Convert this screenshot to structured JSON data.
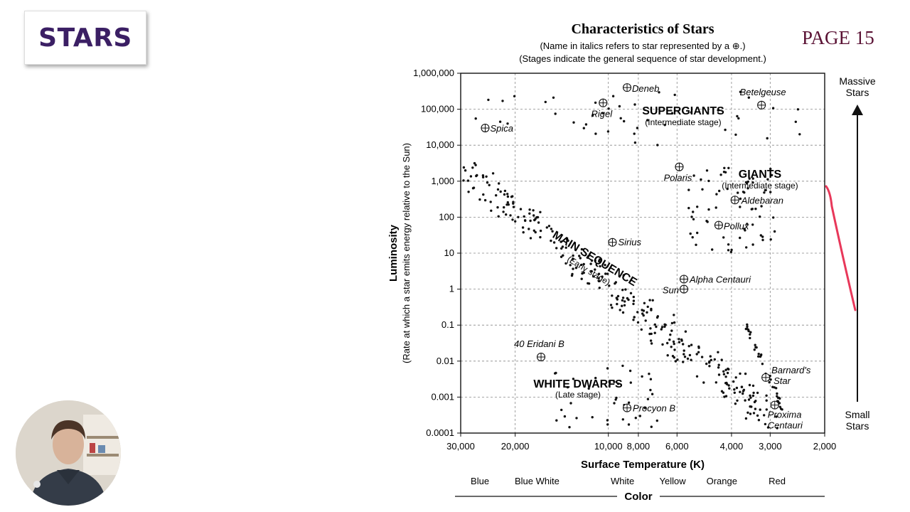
{
  "slide": {
    "heading": "STARS",
    "page_label": "PAGE 15",
    "colors": {
      "heading": "#3b1f64",
      "page_label": "#5a1234"
    }
  },
  "chart_data": {
    "type": "scatter",
    "title": "Characteristics of Stars",
    "subtitle_1": "(Name in italics refers to star represented by a ⊕.)",
    "subtitle_2": "(Stages indicate the general sequence of star development.)",
    "xlabel": "Surface Temperature (K)",
    "ylabel": "Luminosity",
    "ylabel_sub": "(Rate at which a star emits energy relative to the Sun)",
    "x_scale": "log-reversed",
    "xlim": [
      30000,
      2000
    ],
    "ylim": [
      0.0001,
      1000000
    ],
    "x_ticks": [
      {
        "v": 30000,
        "label": "30,000"
      },
      {
        "v": 20000,
        "label": "20,000"
      },
      {
        "v": 10000,
        "label": "10,000"
      },
      {
        "v": 8000,
        "label": "8,000"
      },
      {
        "v": 6000,
        "label": "6,000"
      },
      {
        "v": 4000,
        "label": "4,000"
      },
      {
        "v": 3000,
        "label": "3,000"
      },
      {
        "v": 2000,
        "label": "2,000"
      }
    ],
    "y_ticks": [
      {
        "v": 1000000,
        "label": "1,000,000"
      },
      {
        "v": 100000,
        "label": "100,000"
      },
      {
        "v": 10000,
        "label": "10,000"
      },
      {
        "v": 1000,
        "label": "1,000"
      },
      {
        "v": 100,
        "label": "100"
      },
      {
        "v": 10,
        "label": "10"
      },
      {
        "v": 1,
        "label": "1"
      },
      {
        "v": 0.1,
        "label": "0.1"
      },
      {
        "v": 0.01,
        "label": "0.01"
      },
      {
        "v": 0.001,
        "label": "0.001"
      },
      {
        "v": 0.0001,
        "label": "0.0001"
      }
    ],
    "color_bands": [
      "Blue",
      "Blue White",
      "White",
      "Yellow",
      "Orange",
      "Red"
    ],
    "color_axis_label": "Color",
    "side_top": [
      "Massive",
      "Stars"
    ],
    "side_bottom": [
      "Small",
      "Stars"
    ],
    "regions": [
      {
        "name": "SUPERGIANTS",
        "stage": "(Intermediate stage)"
      },
      {
        "name": "GIANTS",
        "stage": "(Intermediate stage)"
      },
      {
        "name": "MAIN SEQUENCE",
        "stage": "(Early stage)"
      },
      {
        "name": "WHITE DWARFS",
        "stage": "(Late stage)"
      }
    ],
    "named_stars": [
      {
        "name": "Deneb",
        "temp": 8700,
        "lum": 400000
      },
      {
        "name": "Rigel",
        "temp": 10400,
        "lum": 150000
      },
      {
        "name": "Betelgeuse",
        "temp": 3200,
        "lum": 130000
      },
      {
        "name": "Spica",
        "temp": 25000,
        "lum": 30000
      },
      {
        "name": "Polaris",
        "temp": 5900,
        "lum": 2500
      },
      {
        "name": "Aldebaran",
        "temp": 3900,
        "lum": 300
      },
      {
        "name": "Pollux",
        "temp": 4400,
        "lum": 60
      },
      {
        "name": "Sirius",
        "temp": 9700,
        "lum": 20
      },
      {
        "name": "Alpha Centauri",
        "temp": 5700,
        "lum": 1.9
      },
      {
        "name": "Sun",
        "temp": 5700,
        "lum": 1
      },
      {
        "name": "40 Eridani B",
        "temp": 16500,
        "lum": 0.013
      },
      {
        "name": "Procyon B",
        "temp": 8700,
        "lum": 0.0005
      },
      {
        "name": "Barnard's Star",
        "name_lines": [
          "Barnard's",
          "Star"
        ],
        "temp": 3100,
        "lum": 0.0035
      },
      {
        "name": "Proxima Centauri",
        "name_lines": [
          "Proxima",
          "Centauri"
        ],
        "temp": 2900,
        "lum": 0.0006
      }
    ]
  }
}
